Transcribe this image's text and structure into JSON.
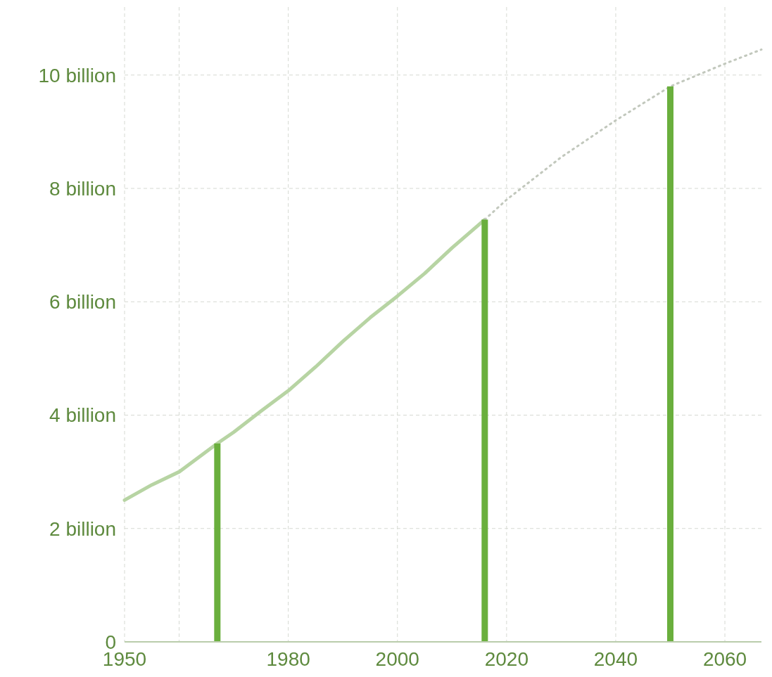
{
  "chart_data": {
    "type": "line",
    "xlim": [
      1950,
      2066.7
    ],
    "ylim": [
      0,
      11.2
    ],
    "xticks": [
      1950,
      {
        "value": 1960,
        "label": null
      },
      1980,
      2000,
      2020,
      2040,
      2060
    ],
    "yticks": [
      {
        "value": 0,
        "label": "0"
      },
      {
        "value": 2,
        "label": "2 billion"
      },
      {
        "value": 4,
        "label": "4 billion"
      },
      {
        "value": 6,
        "label": "6 billion"
      },
      {
        "value": 8,
        "label": "8 billion"
      },
      {
        "value": 10,
        "label": "10 billion"
      }
    ],
    "grid": true,
    "series": [
      {
        "color": "#b7d4a3",
        "line_style": "solid",
        "x": [
          1950,
          1955,
          1960,
          1967,
          1970,
          1975,
          1980,
          1985,
          1990,
          1995,
          2000,
          2005,
          2010,
          2016
        ],
        "values": [
          2.5,
          2.77,
          3.0,
          3.5,
          3.7,
          4.07,
          4.43,
          4.85,
          5.3,
          5.72,
          6.1,
          6.5,
          6.95,
          7.45
        ]
      },
      {
        "color": "#c2c8bd",
        "line_style": "dotted",
        "x": [
          2016,
          2020,
          2030,
          2040,
          2050,
          2060,
          2066.7
        ],
        "values": [
          7.45,
          7.8,
          8.55,
          9.2,
          9.8,
          10.2,
          10.45
        ]
      },
      {
        "type": "bar",
        "color": "#6aaf3d",
        "x": [
          1967,
          2016,
          2050
        ],
        "values": [
          3.5,
          7.45,
          9.8
        ]
      }
    ]
  }
}
